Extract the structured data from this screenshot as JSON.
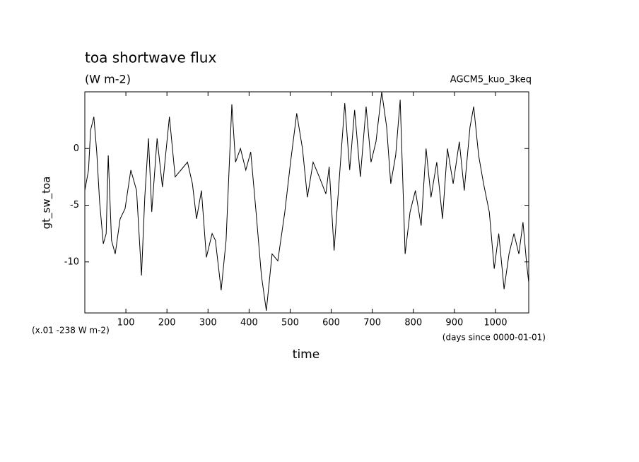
{
  "chart_data": {
    "type": "line",
    "title": "toa shortwave flux",
    "subtitle": "(W m-2)",
    "annotation": "AGCM5_kuo_3keq",
    "ylabel": "gt_sw_toa",
    "xlabel": "time",
    "x_unit_note": "(days since 0000-01-01)",
    "y_offset_note": "(x.01 -238 W m-2)",
    "xlim": [
      0,
      1081
    ],
    "ylim": [
      -14.5,
      5
    ],
    "xticks": [
      100,
      200,
      300,
      400,
      500,
      600,
      700,
      800,
      900,
      1000
    ],
    "yticks": [
      -10,
      -5,
      0
    ],
    "grid": false,
    "series": [
      {
        "name": "gt_sw_toa",
        "color": "#000000",
        "x": [
          0,
          9,
          14,
          22,
          29,
          36,
          45,
          52,
          57,
          65,
          74,
          86,
          98,
          112,
          126,
          138,
          146,
          155,
          163,
          176,
          189,
          206,
          220,
          234,
          250,
          262,
          272,
          284,
          296,
          310,
          318,
          332,
          344,
          358,
          367,
          379,
          392,
          404,
          417,
          430,
          442,
          456,
          470,
          487,
          501,
          516,
          530,
          542,
          556,
          571,
          587,
          595,
          607,
          620,
          633,
          645,
          657,
          671,
          685,
          697,
          709,
          723,
          735,
          745,
          757,
          768,
          780,
          792,
          805,
          819,
          831,
          843,
          857,
          871,
          883,
          897,
          912,
          924,
          938,
          947,
          959,
          971,
          985,
          997,
          1008,
          1021,
          1033,
          1045,
          1057,
          1067,
          1076,
          1081
        ],
        "values": [
          -3.7,
          -1.9,
          1.6,
          2.8,
          -0.3,
          -4.7,
          -8.4,
          -7.5,
          -0.6,
          -8.1,
          -9.3,
          -6.2,
          -5.3,
          -1.9,
          -3.7,
          -11.2,
          -4.3,
          0.9,
          -5.6,
          0.9,
          -3.4,
          2.8,
          -2.5,
          -1.9,
          -1.2,
          -3.1,
          -6.2,
          -3.7,
          -9.6,
          -7.5,
          -8.1,
          -12.5,
          -8.1,
          3.9,
          -1.2,
          0,
          -1.9,
          -0.3,
          -5.6,
          -11.2,
          -14.3,
          -9.3,
          -9.9,
          -5.6,
          -1.2,
          3.1,
          0,
          -4.3,
          -1.2,
          -2.5,
          -4,
          -1.6,
          -9,
          -2.5,
          4,
          -1.9,
          3.4,
          -2.5,
          3.7,
          -1.2,
          0.6,
          5,
          1.9,
          -3.1,
          -0.6,
          4.3,
          -9.3,
          -5.6,
          -3.7,
          -6.8,
          0,
          -4.3,
          -1.2,
          -6.2,
          0,
          -3.1,
          0.6,
          -3.7,
          1.9,
          3.7,
          -0.6,
          -3.1,
          -5.6,
          -10.6,
          -7.5,
          -12.4,
          -9.3,
          -7.5,
          -9.3,
          -6.5,
          -10.2,
          -11.8
        ]
      }
    ]
  }
}
